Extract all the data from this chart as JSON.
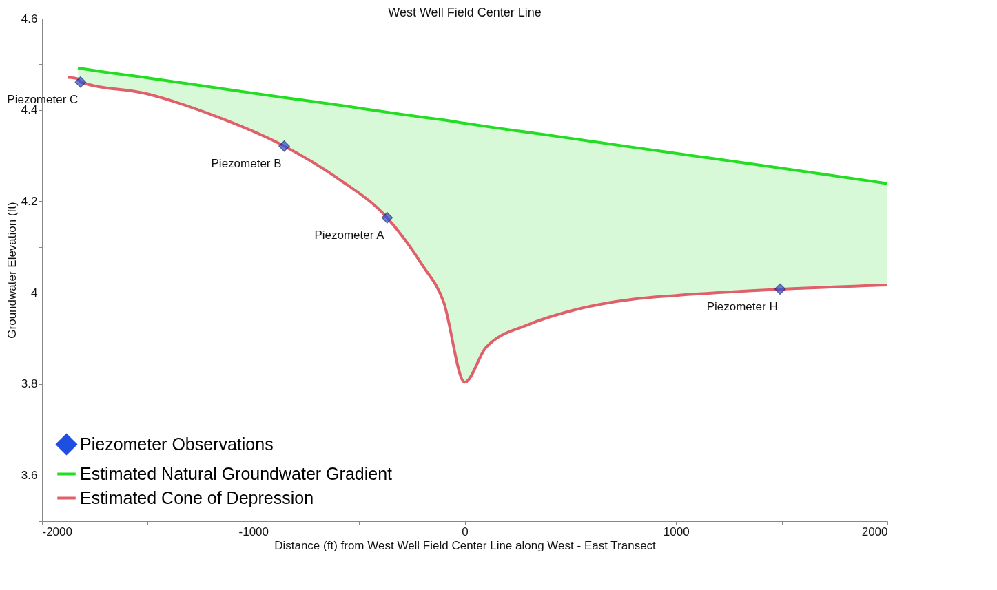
{
  "chart_data": {
    "type": "line",
    "title": "West Well Field Center Line",
    "xlabel": "Distance (ft) from West Well Field Center Line along West - East Transect",
    "ylabel": "Groundwater Elevation (ft)",
    "xlim": [
      -2000,
      2000
    ],
    "xticks": [
      -2000,
      {
        "value": -1500,
        "label": null
      },
      -1000,
      {
        "value": -500,
        "label": null
      },
      0,
      {
        "value": 500,
        "label": null
      },
      1000,
      {
        "value": 1500,
        "label": null
      },
      2000
    ],
    "ylim": [
      3.5,
      4.6
    ],
    "yticks": [
      {
        "value": 3.5,
        "label": null
      },
      3.6,
      {
        "value": 3.7,
        "label": null
      },
      3.8,
      {
        "value": 3.9,
        "label": null
      },
      4,
      {
        "value": 4.1,
        "label": null
      },
      4.2,
      {
        "value": 4.3,
        "label": null
      },
      4.4,
      {
        "value": 4.5,
        "label": null
      },
      4.6
    ],
    "grid": false,
    "legend": "bottom left",
    "series": [
      {
        "type": "scatter",
        "name": "Piezometer Observations",
        "color": "#1f4fe0",
        "marker": "diamond",
        "x": [
          -1818,
          -854,
          -367,
          1492
        ],
        "values": [
          4.461,
          4.321,
          4.164,
          4.008
        ]
      },
      {
        "type": "line",
        "name": "Estimated Natural Groundwater Gradient",
        "color": "#22dd22",
        "x": [
          -1830,
          -1818,
          -1500,
          -1200,
          -854,
          -600,
          -367,
          -200,
          -100,
          0,
          100,
          300,
          500,
          800,
          1000,
          1492,
          2000
        ],
        "values": [
          4.492,
          4.491,
          4.47,
          4.45,
          4.427,
          4.411,
          4.395,
          4.384,
          4.378,
          4.371,
          4.364,
          4.351,
          4.338,
          4.318,
          4.305,
          4.273,
          4.239
        ],
        "lower": [
          4.468,
          4.461,
          4.435,
          4.39,
          4.321,
          4.25,
          4.164,
          4.06,
          3.98,
          3.804,
          3.88,
          3.93,
          3.96,
          3.986,
          3.994,
          4.008,
          4.017
        ],
        "upper": [
          4.492,
          4.491,
          4.47,
          4.45,
          4.427,
          4.411,
          4.395,
          4.384,
          4.378,
          4.371,
          4.364,
          4.351,
          4.338,
          4.318,
          4.305,
          4.273,
          4.239
        ]
      },
      {
        "type": "line",
        "name": "Estimated Cone of Depression",
        "color": "#e0606a",
        "x": [
          -1877,
          -1830,
          -1818,
          -1500,
          -1200,
          -854,
          -600,
          -367,
          -200,
          -100,
          0,
          100,
          300,
          500,
          800,
          1000,
          1300,
          2000
        ],
        "values": [
          4.471,
          4.468,
          4.461,
          4.435,
          4.39,
          4.321,
          4.25,
          4.164,
          4.06,
          3.98,
          3.804,
          3.88,
          3.93,
          3.96,
          3.986,
          3.994,
          4.003,
          4.017
        ]
      }
    ],
    "annotations": [
      {
        "text": "Piezometer C",
        "x": -1818,
        "y": 4.461
      },
      {
        "text": "Piezometer B",
        "x": -854,
        "y": 4.321
      },
      {
        "text": "Piezometer A",
        "x": -367,
        "y": 4.164
      },
      {
        "text": "Piezometer H",
        "x": 1492,
        "y": 4.008
      }
    ]
  }
}
